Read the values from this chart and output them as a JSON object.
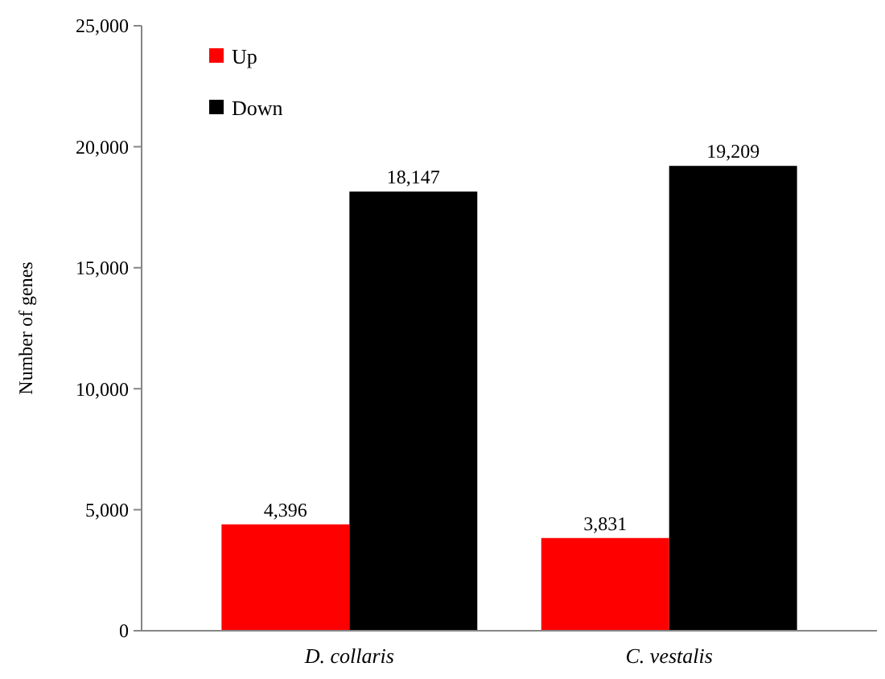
{
  "chart_data": {
    "type": "bar",
    "ylabel": "Number of genes",
    "categories": [
      "D. collaris",
      "C. vestalis"
    ],
    "series": [
      {
        "name": "Up",
        "color": "#ff0000",
        "values": [
          4396,
          3831
        ],
        "value_labels": [
          "4,396",
          "3,831"
        ]
      },
      {
        "name": "Down",
        "color": "#000000",
        "values": [
          18147,
          19209
        ],
        "value_labels": [
          "18,147",
          "19,209"
        ]
      }
    ],
    "ylim": [
      0,
      25000
    ],
    "yticks": [
      {
        "value": 0,
        "label": "0"
      },
      {
        "value": 5000,
        "label": "5,000"
      },
      {
        "value": 10000,
        "label": "10,000"
      },
      {
        "value": 15000,
        "label": "15,000"
      },
      {
        "value": 20000,
        "label": "20,000"
      },
      {
        "value": 25000,
        "label": "25,000"
      }
    ],
    "grid": false,
    "legend": "top left"
  }
}
